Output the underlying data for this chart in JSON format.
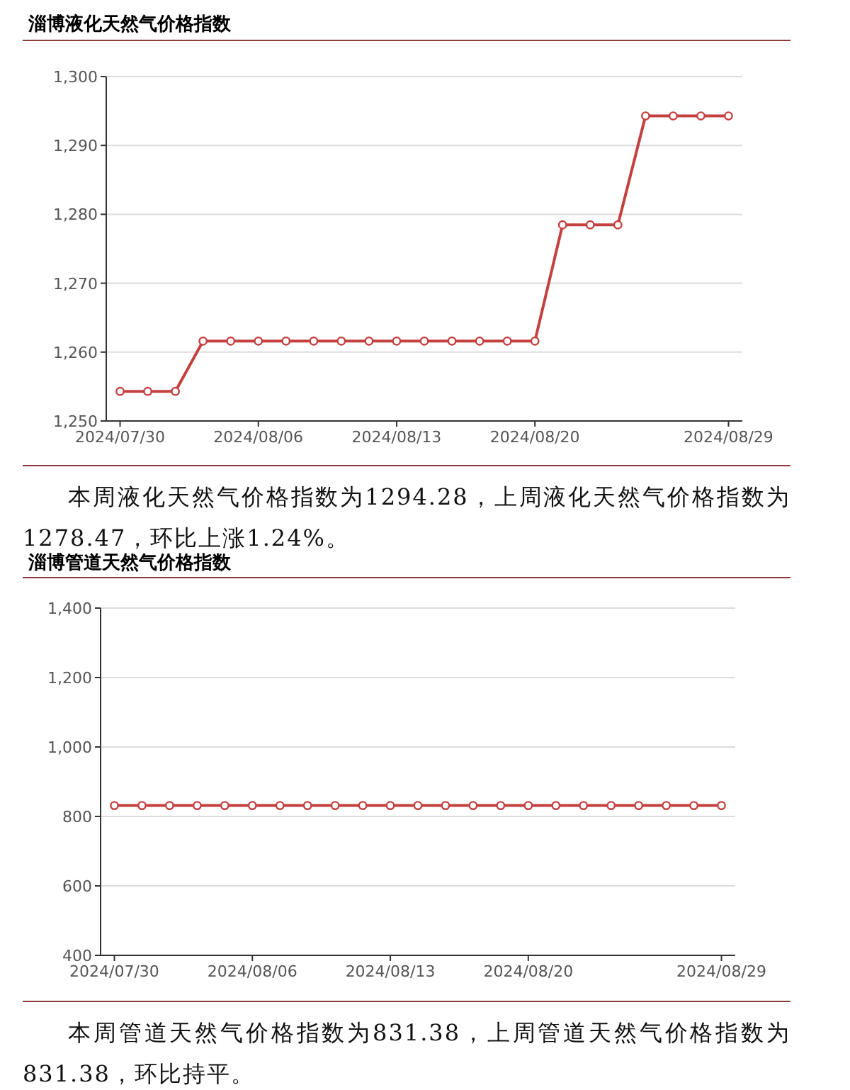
{
  "chart_data": [
    {
      "type": "line",
      "title": "淄博液化天然气价格指数",
      "categories": [
        "2024/07/30",
        null,
        null,
        null,
        null,
        "2024/08/06",
        null,
        null,
        null,
        null,
        "2024/08/13",
        null,
        null,
        null,
        null,
        "2024/08/20",
        null,
        null,
        null,
        null,
        null,
        null,
        "2024/08/29"
      ],
      "series": [
        {
          "color": "#c4403f",
          "values": [
            1254.3,
            1254.3,
            1254.3,
            1261.6,
            1261.6,
            1261.6,
            1261.6,
            1261.6,
            1261.6,
            1261.6,
            1261.6,
            1261.6,
            1261.6,
            1261.6,
            1261.6,
            1261.6,
            1278.47,
            1278.47,
            1278.47,
            1294.28,
            1294.28,
            1294.28,
            1294.28
          ]
        }
      ],
      "ylim": [
        1250,
        1300
      ],
      "yticks": [
        {
          "value": 1250,
          "label": "1,250"
        },
        {
          "value": 1260,
          "label": "1,260"
        },
        {
          "value": 1270,
          "label": "1,270"
        },
        {
          "value": 1280,
          "label": "1,280"
        },
        {
          "value": 1290,
          "label": "1,290"
        },
        {
          "value": 1300,
          "label": "1,300"
        }
      ],
      "grid": "y",
      "marker": "circle",
      "annotations": [
        "本周液化天然气价格指数为1294.28，上周液化天然气价格指数为1278.47，环比上涨1.24%。"
      ]
    },
    {
      "type": "line",
      "title": "淄博管道天然气价格指数",
      "categories": [
        "2024/07/30",
        null,
        null,
        null,
        null,
        "2024/08/06",
        null,
        null,
        null,
        null,
        "2024/08/13",
        null,
        null,
        null,
        null,
        "2024/08/20",
        null,
        null,
        null,
        null,
        null,
        null,
        "2024/08/29"
      ],
      "series": [
        {
          "color": "#c4403f",
          "values": [
            831.38,
            831.38,
            831.38,
            831.38,
            831.38,
            831.38,
            831.38,
            831.38,
            831.38,
            831.38,
            831.38,
            831.38,
            831.38,
            831.38,
            831.38,
            831.38,
            831.38,
            831.38,
            831.38,
            831.38,
            831.38,
            831.38,
            831.38
          ]
        }
      ],
      "ylim": [
        400,
        1400
      ],
      "yticks": [
        400,
        600,
        800,
        {
          "value": 1000,
          "label": "1,000"
        },
        {
          "value": 1200,
          "label": "1,200"
        },
        {
          "value": 1400,
          "label": "1,400"
        }
      ],
      "grid": "y",
      "marker": "circle",
      "annotations": [
        "本周管道天然气价格指数为831.38，上周管道天然气价格指数为831.38，环比持平。"
      ]
    }
  ]
}
